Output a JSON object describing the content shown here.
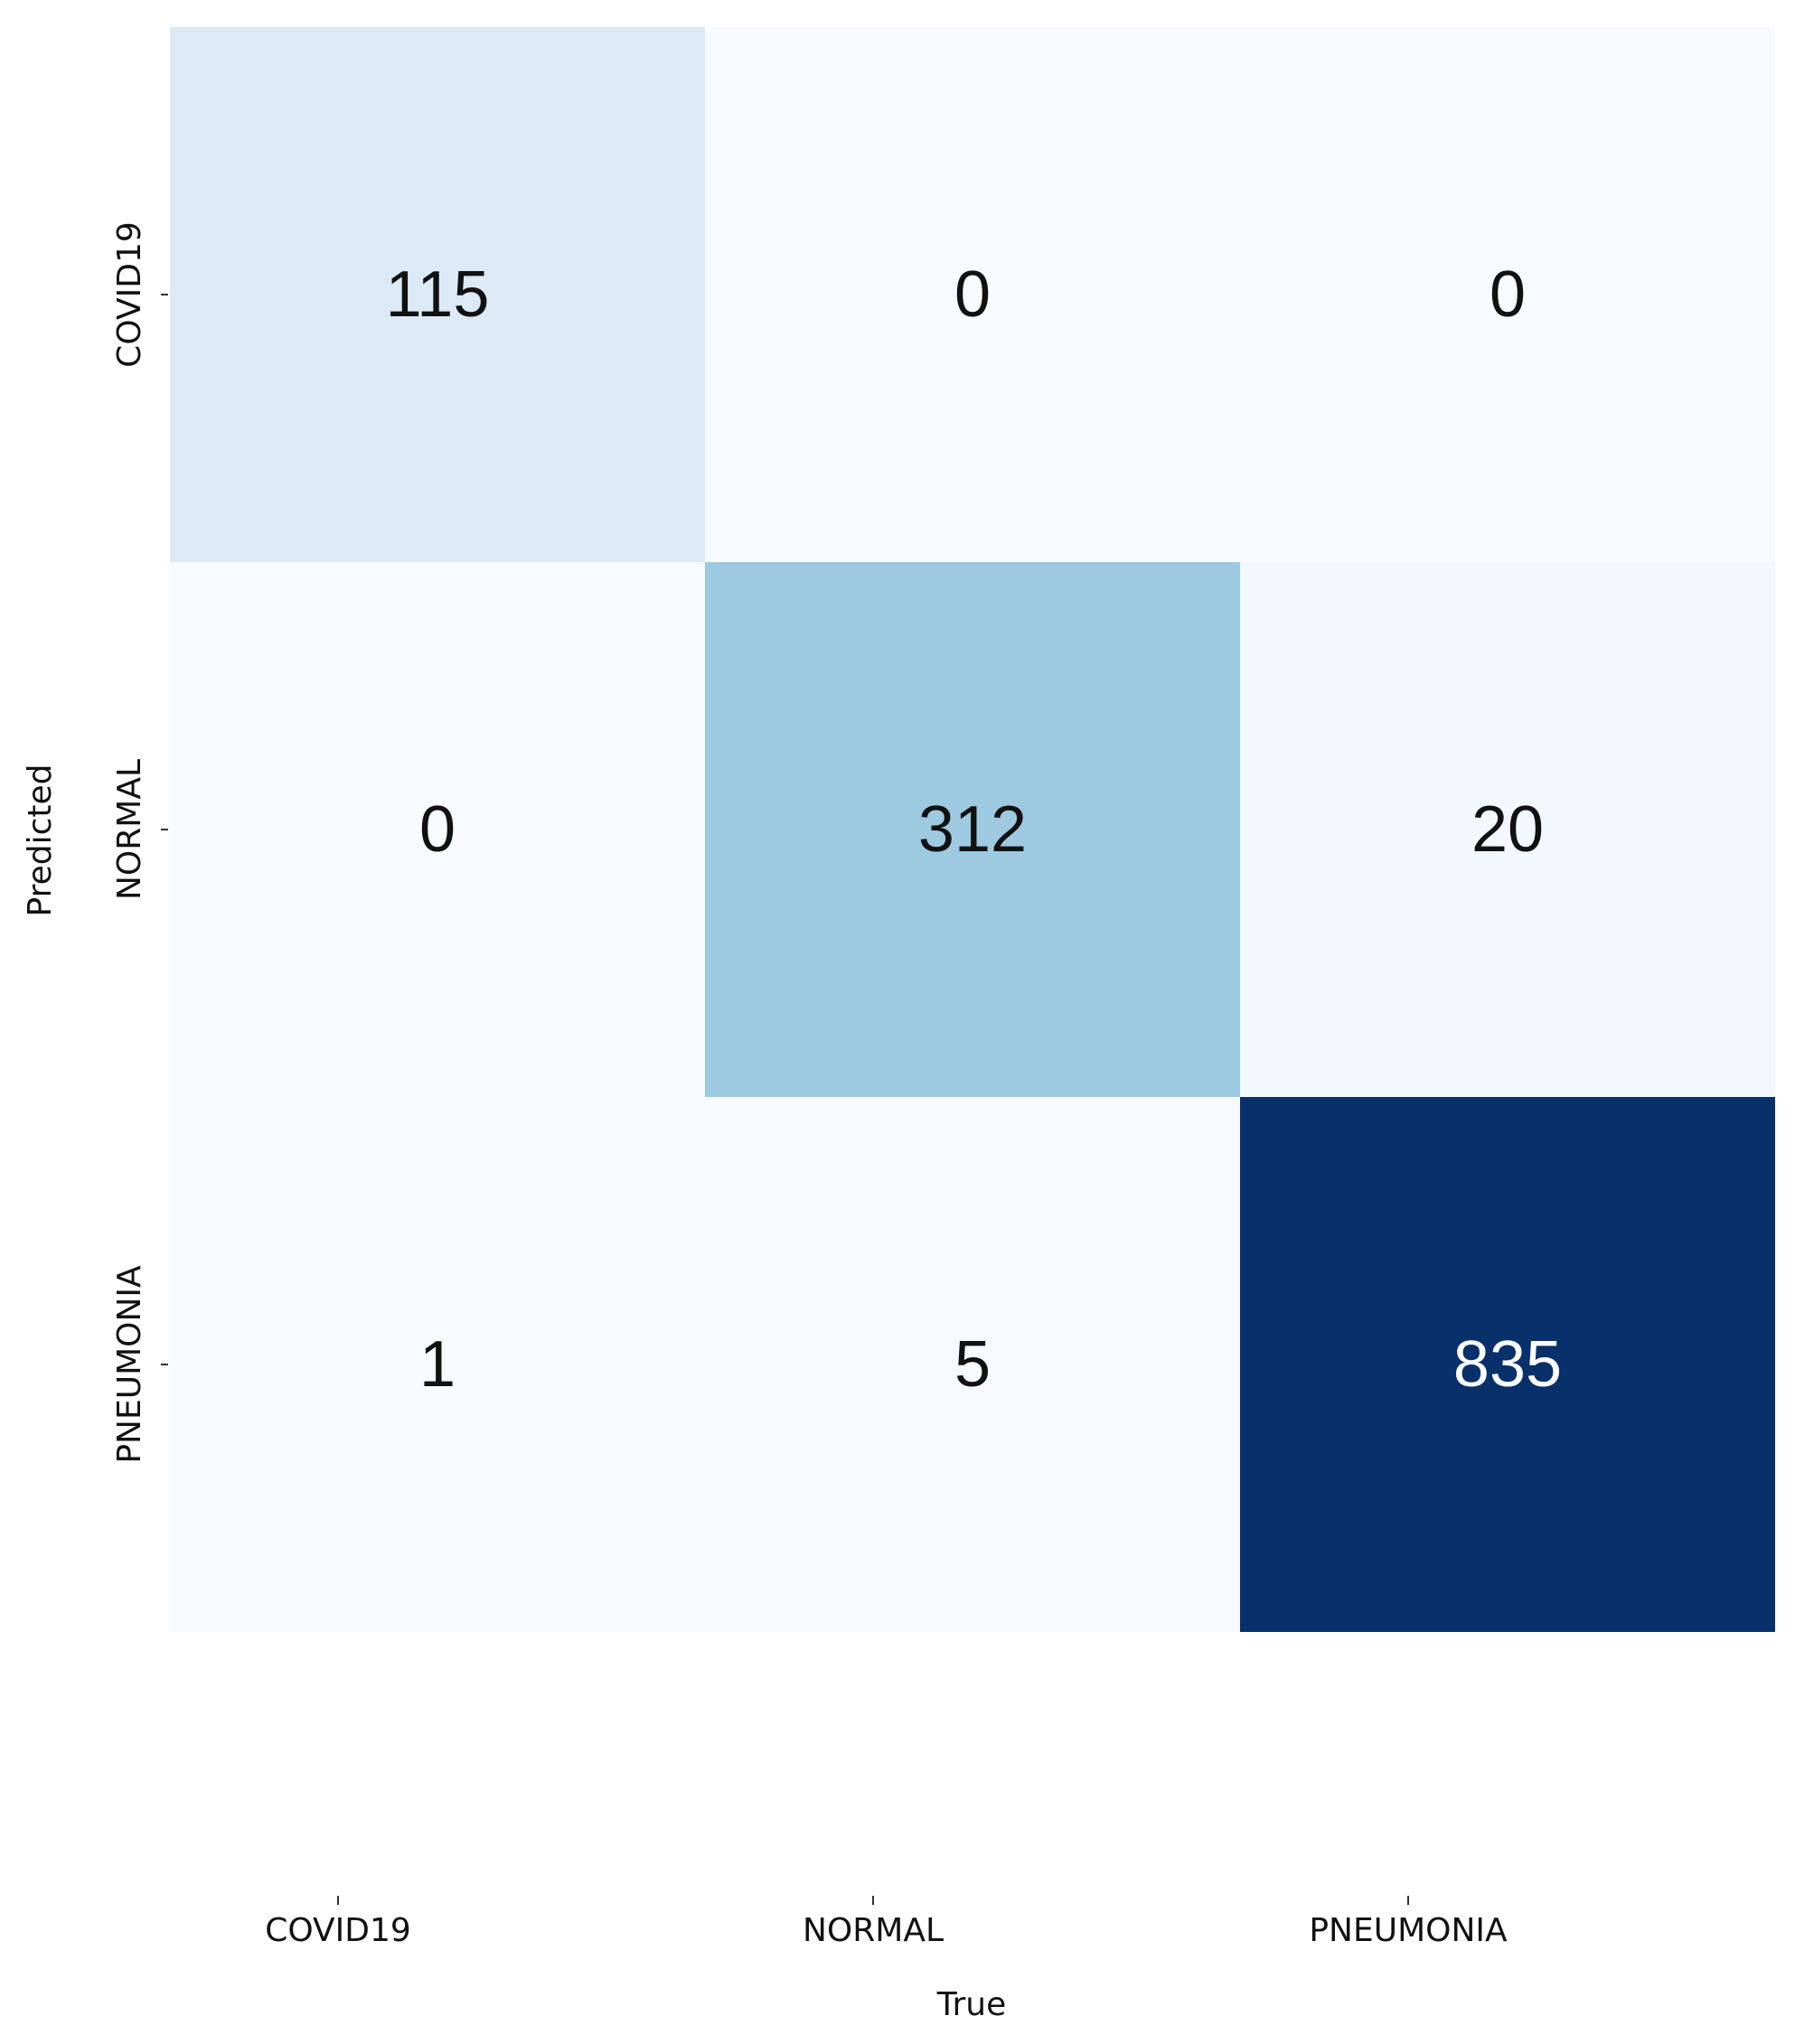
{
  "chart_data": {
    "type": "heatmap",
    "xlabel": "True",
    "ylabel": "Predicted",
    "x_categories": [
      "COVID19",
      "NORMAL",
      "PNEUMONIA"
    ],
    "y_categories": [
      "COVID19",
      "NORMAL",
      "PNEUMONIA"
    ],
    "values": [
      [
        115,
        0,
        0
      ],
      [
        0,
        312,
        20
      ],
      [
        1,
        5,
        835
      ]
    ],
    "colormap": "Blues",
    "colorbar": false,
    "annotated": true,
    "grid": false
  }
}
